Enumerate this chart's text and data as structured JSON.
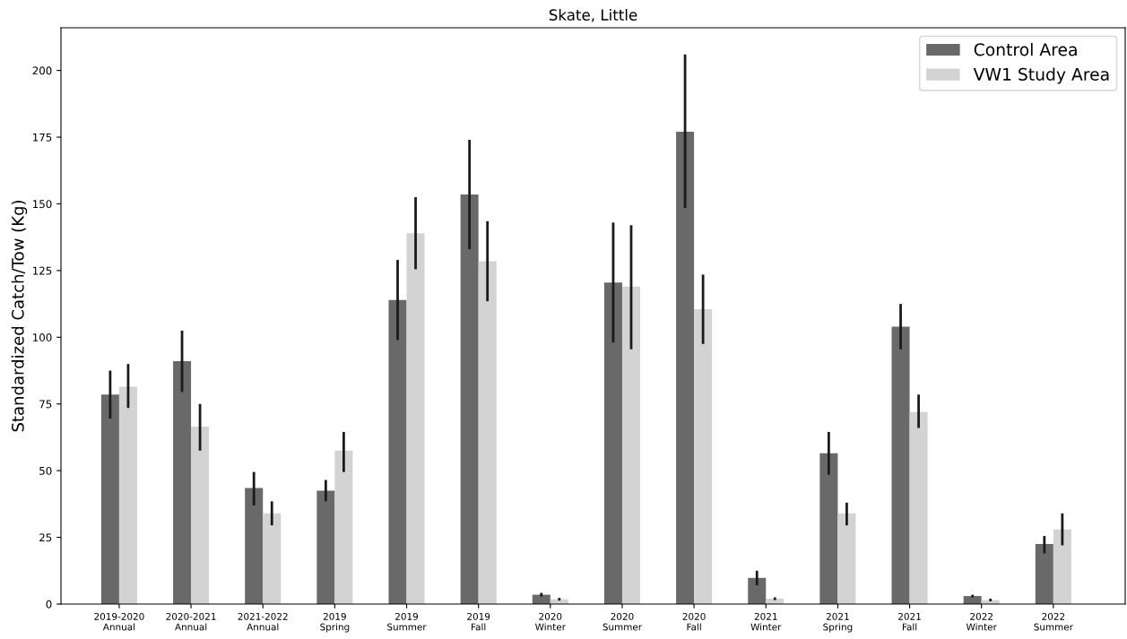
{
  "chart_data": {
    "type": "bar",
    "title": "Skate, Little",
    "ylabel": "Standardized Catch/Tow (Kg)",
    "categories": [
      "2019-2020\nAnnual",
      "2020-2021\nAnnual",
      "2021-2022\nAnnual",
      "2019\nSpring",
      "2019\nSummer",
      "2019\nFall",
      "2020\nWinter",
      "2020\nSummer",
      "2020\nFall",
      "2021\nWinter",
      "2021\nSpring",
      "2021\nFall",
      "2022\nWinter",
      "2022\nSummer"
    ],
    "series": [
      {
        "name": "Control Area",
        "color": "#696969",
        "values": [
          78.5,
          91,
          43.5,
          42.5,
          114,
          153.5,
          3.5,
          120.5,
          177,
          9.8,
          56.5,
          104,
          3,
          22.5
        ],
        "errors": [
          [
            69.5,
            87.5
          ],
          [
            79.5,
            102.5
          ],
          [
            37,
            49.5
          ],
          [
            38.5,
            46.5
          ],
          [
            99,
            129
          ],
          [
            133,
            174
          ],
          [
            2.8,
            4.2
          ],
          [
            98,
            143
          ],
          [
            148.5,
            206
          ],
          [
            7,
            12.5
          ],
          [
            48.5,
            64.5
          ],
          [
            95.5,
            112.5
          ],
          [
            2.5,
            3.5
          ],
          [
            19,
            25.5
          ]
        ]
      },
      {
        "name": "VW1 Study Area",
        "color": "#d3d3d3",
        "values": [
          81.5,
          66.5,
          34,
          57.5,
          139,
          128.5,
          1.8,
          119,
          110.5,
          2,
          34,
          72,
          1.5,
          28
        ],
        "errors": [
          [
            73.5,
            90
          ],
          [
            57.5,
            75
          ],
          [
            29.5,
            38.5
          ],
          [
            49.5,
            64.5
          ],
          [
            125.5,
            152.5
          ],
          [
            113.5,
            143.5
          ],
          [
            1.3,
            2.3
          ],
          [
            95.5,
            142
          ],
          [
            97.5,
            123.5
          ],
          [
            1.5,
            2.5
          ],
          [
            29.5,
            38
          ],
          [
            66,
            78.5
          ],
          [
            1,
            2
          ],
          [
            22,
            34
          ]
        ]
      }
    ],
    "ylim": [
      0,
      216
    ],
    "yticks": [
      0,
      25,
      50,
      75,
      100,
      125,
      150,
      175,
      200
    ],
    "grid": false,
    "legend": "top right"
  }
}
